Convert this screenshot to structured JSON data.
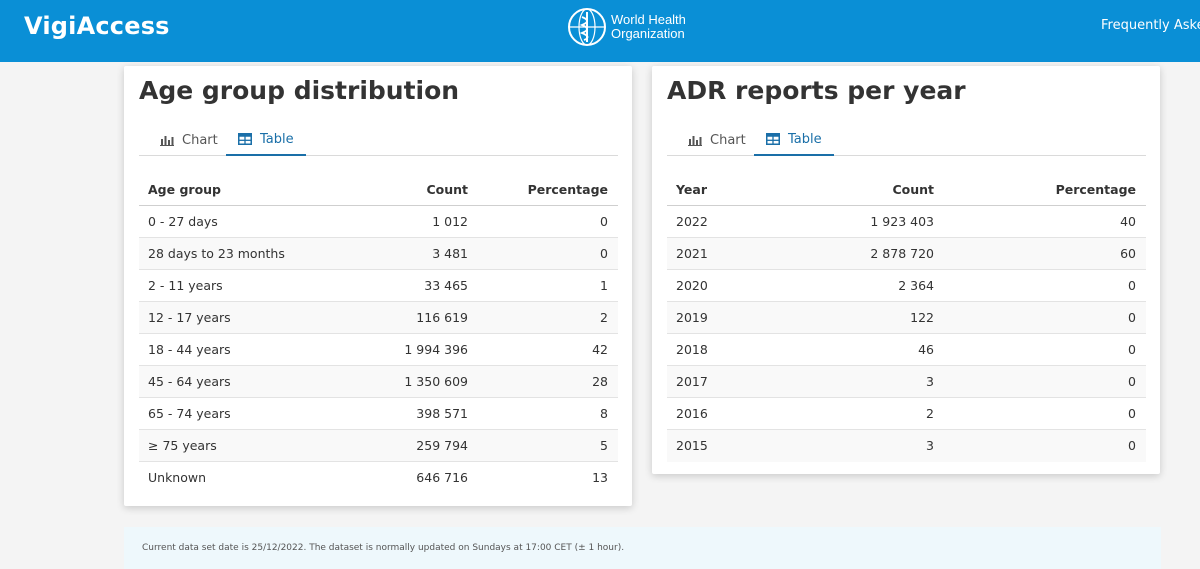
{
  "header": {
    "brand": "VigiAccess",
    "org_line1": "World Health",
    "org_line2": "Organization",
    "faq": "Frequently Asked"
  },
  "age_card": {
    "title": "Age group distribution",
    "tabs": [
      {
        "label": "Chart"
      },
      {
        "label": "Table"
      }
    ],
    "active_tab": "Table",
    "columns": [
      "Age group",
      "Count",
      "Percentage"
    ],
    "rows": [
      [
        "0 - 27 days",
        "1 012",
        "0"
      ],
      [
        "28 days to 23 months",
        "3 481",
        "0"
      ],
      [
        "2 - 11 years",
        "33 465",
        "1"
      ],
      [
        "12 - 17 years",
        "116 619",
        "2"
      ],
      [
        "18 - 44 years",
        "1 994 396",
        "42"
      ],
      [
        "45 - 64 years",
        "1 350 609",
        "28"
      ],
      [
        "65 - 74 years",
        "398 571",
        "8"
      ],
      [
        "≥ 75 years",
        "259 794",
        "5"
      ],
      [
        "Unknown",
        "646 716",
        "13"
      ]
    ]
  },
  "year_card": {
    "title": "ADR reports per year",
    "tabs": [
      {
        "label": "Chart"
      },
      {
        "label": "Table"
      }
    ],
    "active_tab": "Table",
    "columns": [
      "Year",
      "Count",
      "Percentage"
    ],
    "rows": [
      [
        "2022",
        "1 923 403",
        "40"
      ],
      [
        "2021",
        "2 878 720",
        "60"
      ],
      [
        "2020",
        "2 364",
        "0"
      ],
      [
        "2019",
        "122",
        "0"
      ],
      [
        "2018",
        "46",
        "0"
      ],
      [
        "2017",
        "3",
        "0"
      ],
      [
        "2016",
        "2",
        "0"
      ],
      [
        "2015",
        "3",
        "0"
      ]
    ]
  },
  "footer": {
    "text": "Current data set date is 25/12/2022. The dataset is normally updated on Sundays at 17:00 CET (± 1 hour)."
  },
  "colors": {
    "header_bg": "#0a8fd6",
    "accent": "#1a6fa8"
  },
  "icons": {
    "chart_tab": "bar-chart-icon",
    "table_tab": "table-icon",
    "logo": "who-emblem-icon"
  }
}
